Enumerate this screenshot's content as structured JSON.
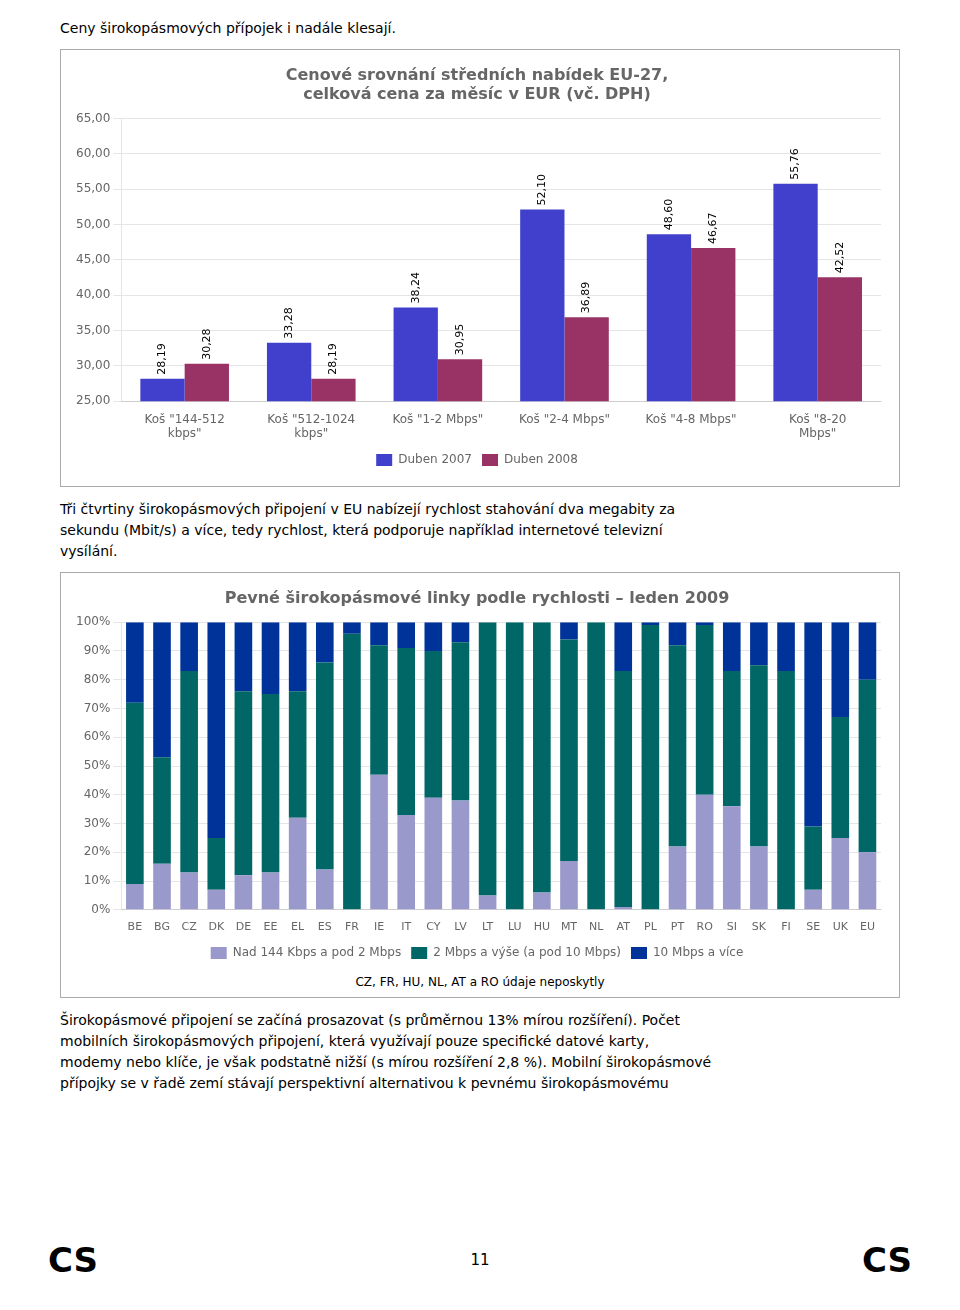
{
  "chart_data": [
    {
      "type": "bar",
      "title": "Cenové srovnání středních nabídek EU-27,\ncelková cena za měsíc v EUR (vč. DPH)",
      "categories": [
        "Koš \"144-512\nkbps\"",
        "Koš \"512-1024\nkbps\"",
        "Koš \"1-2 Mbps\"",
        "Koš \"2-4 Mbps\"",
        "Koš \"4-8 Mbps\"",
        "Koš \"8-20\nMbps\""
      ],
      "series": [
        {
          "name": "Duben 2007",
          "color": "#4040cc",
          "values": [
            28.19,
            33.28,
            38.24,
            52.1,
            48.6,
            55.76
          ],
          "value_labels": [
            "28,19",
            "33,28",
            "38,24",
            "52,10",
            "48,60",
            "55,76"
          ]
        },
        {
          "name": "Duben 2008",
          "color": "#993366",
          "values": [
            30.28,
            28.19,
            30.95,
            36.89,
            46.67,
            42.52
          ],
          "value_labels": [
            "30,28",
            "28,19",
            "30,95",
            "36,89",
            "46,67",
            "42,52"
          ]
        }
      ],
      "ylim": [
        25,
        65
      ],
      "yticks": [
        {
          "value": 25,
          "label": "25,00"
        },
        {
          "value": 30,
          "label": "30,00"
        },
        {
          "value": 35,
          "label": "35,00"
        },
        {
          "value": 40,
          "label": "40,00"
        },
        {
          "value": 45,
          "label": "45,00"
        },
        {
          "value": 50,
          "label": "50,00"
        },
        {
          "value": 55,
          "label": "55,00"
        },
        {
          "value": 60,
          "label": "60,00"
        },
        {
          "value": 65,
          "label": "65,00"
        }
      ],
      "grid": true,
      "legend": "bottom",
      "data_labels": true,
      "annotations": [
        "Ceny širokopásmových přípojek i nadále klesají.",
        "Tři čtvrtiny širokopásmových připojení v EU nabízejí rychlost stahování dva megabity za",
        "sekundu (Mbit/s) a více, tedy rychlost, která podporuje například internetové televizní",
        "vysílání."
      ]
    },
    {
      "type": "bar",
      "stacked": true,
      "title": "Pevné širokopásmové linky podle rychlosti – leden 2009",
      "categories": [
        "BE",
        "BG",
        "CZ",
        "DK",
        "DE",
        "EE",
        "EL",
        "ES",
        "FR",
        "IE",
        "IT",
        "CY",
        "LV",
        "LT",
        "LU",
        "HU",
        "MT",
        "NL",
        "AT",
        "PL",
        "PT",
        "RO",
        "SI",
        "SK",
        "FI",
        "SE",
        "UK",
        "EU"
      ],
      "series": [
        {
          "name": "Nad 144 Kbps a pod 2 Mbps",
          "color": "#9999cc",
          "values": [
            9,
            16,
            13,
            7,
            12,
            13,
            32,
            14,
            0,
            47,
            33,
            39,
            38,
            5,
            0,
            6,
            17,
            0,
            1,
            0,
            22,
            40,
            36,
            22,
            0,
            7,
            25,
            20
          ]
        },
        {
          "name": "2 Mbps a výše (a pod 10 Mbps)",
          "color": "#006666",
          "values": [
            63,
            37,
            70,
            18,
            64,
            62,
            44,
            72,
            96,
            45,
            58,
            51,
            55,
            95,
            100,
            94,
            77,
            100,
            82,
            99,
            70,
            59,
            47,
            63,
            83,
            22,
            42,
            60
          ]
        },
        {
          "name": "10 Mbps a více",
          "color": "#003399",
          "values": [
            28,
            47,
            17,
            75,
            24,
            25,
            24,
            14,
            4,
            8,
            9,
            10,
            7,
            0,
            0,
            0,
            6,
            0,
            17,
            1,
            8,
            1,
            17,
            15,
            17,
            71,
            33,
            20
          ]
        }
      ],
      "ylim": [
        0,
        100
      ],
      "yticks": [
        {
          "value": 0,
          "label": "0%"
        },
        {
          "value": 10,
          "label": "10%"
        },
        {
          "value": 20,
          "label": "20%"
        },
        {
          "value": 30,
          "label": "30%"
        },
        {
          "value": 40,
          "label": "40%"
        },
        {
          "value": 50,
          "label": "50%"
        },
        {
          "value": 60,
          "label": "60%"
        },
        {
          "value": 70,
          "label": "70%"
        },
        {
          "value": 80,
          "label": "80%"
        },
        {
          "value": 90,
          "label": "90%"
        },
        {
          "value": 100,
          "label": "100%"
        }
      ],
      "grid": true,
      "legend": "bottom",
      "annotations": [
        "CZ, FR, HU, NL, AT a RO údaje neposkytly",
        "Širokopásmové připojení se začíná prosazovat (s průměrnou 13% mírou rozšíření). Počet",
        "mobilních širokopásmových připojení, která využívají pouze specifické datové karty,",
        "modemy nebo klíče, je však podstatně nižší (s mírou rozšíření 2,8 %). Mobilní širokopásmové",
        "přípojky se v řadě zemí stávají perspektivní alternativou k pevnému širokopásmovému",
        "CS",
        "11",
        "CS"
      ]
    }
  ]
}
